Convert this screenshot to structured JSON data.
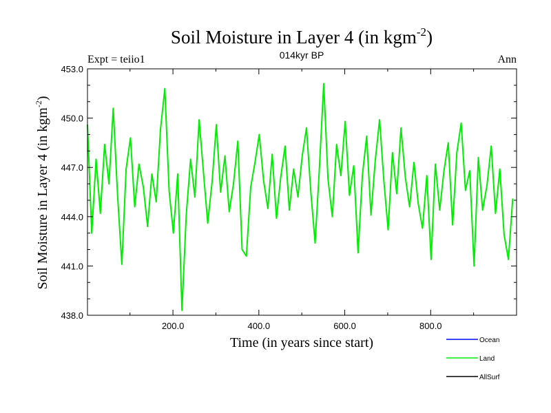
{
  "chart_data": {
    "type": "line",
    "title": "Soil Moisture in Layer 4 (in kgm",
    "title_sup": "-2",
    "title_close": ")",
    "subtitle": "014kyr BP",
    "left_label": "Expt = teiio1",
    "right_label": "Ann",
    "xlabel": "Time (in years since start)",
    "ylabel": "Soil Moisture in Layer 4 (in kgm",
    "ylabel_sup": "-2",
    "ylabel_close": ")",
    "xlim": [
      1,
      1000
    ],
    "ylim": [
      438.0,
      453.0
    ],
    "xticks": [
      200.0,
      400.0,
      600.0,
      800.0
    ],
    "xtick_labels": [
      "200.0",
      "400.0",
      "600.0",
      "800.0"
    ],
    "yticks": [
      438.0,
      441.0,
      444.0,
      447.0,
      450.0,
      453.0
    ],
    "ytick_labels": [
      "438.0",
      "441.0",
      "444.0",
      "447.0",
      "450.0",
      "453.0"
    ],
    "grid": false,
    "legend_position": "bottom-right",
    "series": [
      {
        "name": "Ocean",
        "color": "#0000ff",
        "values": []
      },
      {
        "name": "Land",
        "color": "#00ee00",
        "x_start": 1,
        "x_step": 10,
        "values": [
          449.6,
          443.0,
          447.5,
          444.2,
          448.4,
          446.0,
          450.6,
          445.3,
          441.1,
          446.9,
          448.8,
          444.6,
          447.2,
          445.8,
          443.4,
          446.6,
          444.9,
          449.3,
          451.8,
          445.6,
          443.0,
          446.6,
          438.3,
          444.1,
          447.5,
          445.2,
          449.9,
          446.7,
          443.6,
          446.1,
          449.6,
          445.5,
          447.7,
          444.3,
          446.0,
          448.6,
          442.0,
          441.6,
          445.8,
          447.3,
          449.0,
          446.2,
          444.5,
          447.8,
          443.9,
          446.4,
          448.3,
          444.4,
          446.9,
          445.2,
          447.7,
          449.4,
          445.5,
          442.4,
          447.0,
          452.1,
          446.3,
          444.0,
          448.4,
          446.5,
          449.8,
          445.3,
          447.1,
          441.8,
          446.5,
          448.9,
          444.1,
          447.4,
          449.9,
          446.2,
          443.2,
          447.9,
          445.4,
          449.4,
          446.4,
          444.6,
          447.3,
          444.8,
          443.3,
          446.5,
          441.4,
          447.2,
          444.4,
          446.8,
          448.5,
          443.5,
          447.9,
          449.7,
          445.6,
          446.8,
          441.0,
          447.6,
          444.4,
          445.9,
          448.3,
          444.2,
          446.9,
          442.9,
          441.4,
          445.1
        ]
      },
      {
        "name": "AllSurf",
        "color": "#000000",
        "values": []
      }
    ]
  }
}
